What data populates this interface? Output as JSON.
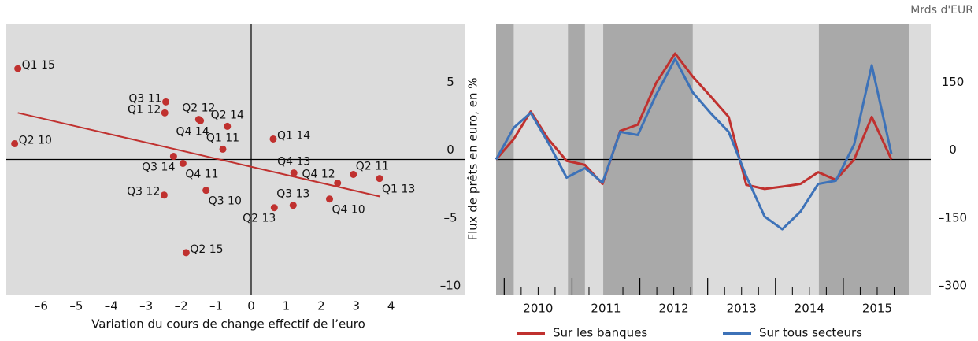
{
  "chart_data": [
    {
      "type": "scatter",
      "x_label": "Variation du cours de change effectif de l’euro",
      "y_label": "Flux de prêts en euro, en %",
      "xlim": [
        -7,
        6.1
      ],
      "ylim": [
        -10,
        10
      ],
      "xticks": [
        {
          "value": -6,
          "label": "–6"
        },
        {
          "value": -5,
          "label": "–5"
        },
        {
          "value": -4,
          "label": "–4"
        },
        {
          "value": -3,
          "label": "–3"
        },
        {
          "value": -2,
          "label": "–2"
        },
        {
          "value": -1,
          "label": "–1"
        },
        0,
        1,
        2,
        3,
        4
      ],
      "yticks": [
        {
          "value": -10,
          "label": "–10"
        },
        {
          "value": -5,
          "label": "–5"
        },
        0,
        5
      ],
      "color": "#c0312f",
      "labels": [
        "Q1 15",
        "Q3 11",
        "Q2 12",
        "Q1 12",
        "Q2 14",
        "Q4 14",
        "Q2 10",
        "Q1 14",
        "Q1 11",
        "Q3 14",
        "Q4 11",
        "Q4 13",
        "Q2 11",
        "Q4 12",
        "Q1 13",
        "Q3 12",
        "Q3 10",
        "Q3 13",
        "Q2 13",
        "Q4 10",
        "Q2 15"
      ],
      "x": [
        -6.67,
        -2.44,
        -1.5,
        -2.47,
        -0.68,
        -1.45,
        -6.76,
        0.63,
        -0.81,
        -2.22,
        -1.95,
        1.22,
        2.92,
        2.47,
        3.67,
        -2.49,
        -1.29,
        1.2,
        0.66,
        2.24,
        -1.86
      ],
      "y": [
        6.69,
        4.24,
        2.95,
        3.43,
        2.44,
        2.85,
        1.16,
        1.51,
        0.76,
        0.23,
        -0.29,
        -0.99,
        -1.1,
        -1.74,
        -1.4,
        -2.62,
        -2.27,
        -3.37,
        -3.55,
        -2.91,
        -6.86
      ],
      "trend": {
        "x": [
          -6.67,
          3.69
        ],
        "y": [
          3.43,
          -2.73
        ]
      }
    },
    {
      "type": "line",
      "unit": "Mrds d'EUR",
      "xlim": [
        2009.88,
        2016.29
      ],
      "ylim": [
        -300,
        300
      ],
      "xticks": [
        2010,
        2011,
        2012,
        2013,
        2014,
        2015
      ],
      "yticks": [
        {
          "value": -300,
          "label": "–300"
        },
        {
          "value": -150,
          "label": "–150"
        },
        0,
        150
      ],
      "shaded": [
        [
          2009.88,
          2010.14
        ],
        [
          2010.94,
          2011.19
        ],
        [
          2011.46,
          2012.78
        ],
        [
          2014.64,
          2015.97
        ]
      ],
      "x": [
        2009.88,
        2010.14,
        2010.39,
        2010.65,
        2010.92,
        2011.19,
        2011.45,
        2011.71,
        2011.97,
        2012.24,
        2012.52,
        2012.78,
        2013.04,
        2013.31,
        2013.57,
        2013.84,
        2014.1,
        2014.37,
        2014.63,
        2014.89,
        2015.16,
        2015.42,
        2015.71
      ],
      "series": [
        {
          "name": "Sur les banques",
          "color": "#c0312f",
          "values": [
            0,
            45,
            106,
            45,
            -3,
            -12,
            -54,
            63,
            77,
            169,
            234,
            183,
            140,
            94,
            -56,
            -65,
            -60,
            -54,
            -28,
            -45,
            0,
            94,
            0
          ]
        },
        {
          "name": "Sur tous secteurs",
          "color": "#3d72b8",
          "values": [
            0,
            70,
            103,
            37,
            -40,
            -19,
            -51,
            61,
            54,
            143,
            222,
            148,
            103,
            61,
            -37,
            -126,
            -154,
            -115,
            -54,
            -47,
            33,
            208,
            12
          ]
        }
      ]
    }
  ]
}
